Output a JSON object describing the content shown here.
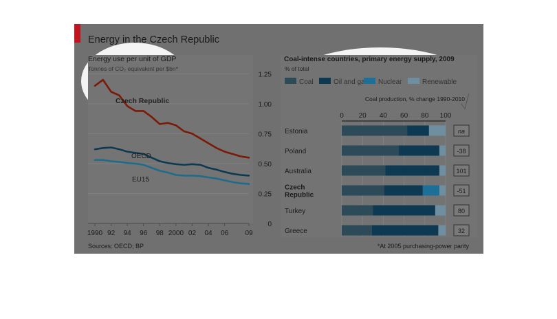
{
  "colors": {
    "frame": "#6e6e6e",
    "panel": "#707070",
    "brand_red": "#c0141e",
    "czech_line": "#7a1a08",
    "oecd_line": "#0d3a52",
    "eu_line": "#1f6c8a",
    "grid": "#7f7f7f",
    "coal": "#2d4a59",
    "oil_gas": "#0d3a52",
    "nuclear": "#1c6f96",
    "renewable": "#6f8fa0",
    "spotlight": "#ffffff"
  },
  "header": {
    "title": "Energy in the Czech Republic"
  },
  "footer": {
    "sources": "Sources: OECD; BP",
    "note": "*At 2005 purchasing-power parity"
  },
  "chart_data": [
    {
      "type": "line",
      "title": "Energy use per unit of GDP",
      "subtitle": "Tonnes of CO₂ equivalent per $bn*",
      "x": [
        1990,
        1991,
        1992,
        1993,
        1994,
        1995,
        1996,
        1997,
        1998,
        1999,
        2000,
        2001,
        2002,
        2003,
        2004,
        2005,
        2006,
        2007,
        2008,
        2009
      ],
      "x_tick_labels": [
        "1990",
        "92",
        "94",
        "96",
        "98",
        "2000",
        "02",
        "04",
        "06",
        "09"
      ],
      "x_tick_values": [
        1990,
        1992,
        1994,
        1996,
        1998,
        2000,
        2002,
        2004,
        2006,
        2009
      ],
      "y_ticks": [
        "0",
        "0.25",
        "0.50",
        "0.75",
        "1.00",
        "1.25"
      ],
      "y_tick_values": [
        0,
        0.25,
        0.5,
        0.75,
        1.0,
        1.25
      ],
      "ylim": [
        0,
        1.35
      ],
      "grid": true,
      "series": [
        {
          "name": "Czech Republic",
          "color_key": "czech_line",
          "values": [
            1.15,
            1.2,
            1.1,
            1.07,
            0.98,
            0.94,
            0.94,
            0.89,
            0.83,
            0.84,
            0.82,
            0.77,
            0.75,
            0.71,
            0.67,
            0.63,
            0.6,
            0.58,
            0.56,
            0.55
          ]
        },
        {
          "name": "OECD",
          "color_key": "oecd_line",
          "values": [
            0.62,
            0.63,
            0.635,
            0.62,
            0.6,
            0.59,
            0.58,
            0.55,
            0.52,
            0.505,
            0.495,
            0.49,
            0.495,
            0.49,
            0.465,
            0.45,
            0.43,
            0.415,
            0.405,
            0.4
          ]
        },
        {
          "name": "EU15",
          "color_key": "eu_line",
          "values": [
            0.53,
            0.53,
            0.52,
            0.515,
            0.505,
            0.5,
            0.49,
            0.465,
            0.44,
            0.425,
            0.405,
            0.4,
            0.4,
            0.395,
            0.385,
            0.375,
            0.36,
            0.345,
            0.335,
            0.33
          ]
        }
      ]
    },
    {
      "type": "bar",
      "stacked": true,
      "orientation": "horizontal",
      "title": "Coal-intense countries, primary energy supply, 2009",
      "subtitle": "% of total",
      "categories": [
        "Estonia",
        "Poland",
        "Australia",
        "Czech Republic",
        "Turkey",
        "Greece"
      ],
      "category_lines": [
        [
          "Estonia"
        ],
        [
          "Poland"
        ],
        [
          "Australia"
        ],
        [
          "Czech",
          "Republic"
        ],
        [
          "Turkey"
        ],
        [
          "Greece"
        ]
      ],
      "category_bold": [
        false,
        false,
        false,
        true,
        false,
        false
      ],
      "x_ticks": [
        "0",
        "20",
        "40",
        "60",
        "80",
        "100"
      ],
      "x_tick_values": [
        0,
        20,
        40,
        60,
        80,
        100
      ],
      "xlim": [
        0,
        100
      ],
      "series": [
        {
          "name": "Coal",
          "color_key": "coal",
          "values": [
            63,
            55,
            42,
            41,
            30,
            29
          ]
        },
        {
          "name": "Oil and gas",
          "color_key": "oil_gas",
          "values": [
            21,
            39,
            52,
            37,
            60,
            64
          ]
        },
        {
          "name": "Nuclear",
          "color_key": "nuclear",
          "values": [
            0,
            0,
            0,
            16,
            0,
            0
          ]
        },
        {
          "name": "Renewable",
          "color_key": "renewable",
          "values": [
            16,
            6,
            6,
            6,
            10,
            7
          ]
        }
      ],
      "side_panel": {
        "label": "Coal production, % change 1990-2010",
        "values": [
          "na",
          "-38",
          "101",
          "-51",
          "80",
          "32"
        ]
      },
      "legend_position": "top"
    }
  ]
}
